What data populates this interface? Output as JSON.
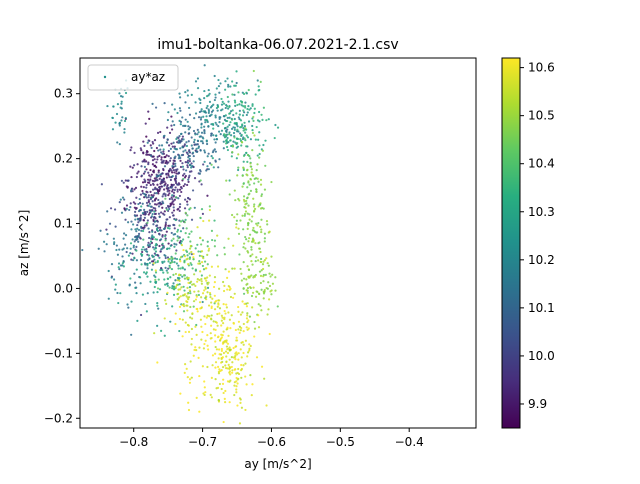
{
  "chart_data": {
    "type": "scatter",
    "title": "imu1-boltanka-06.07.2021-2.1.csv",
    "xlabel": "ay [m/s^2]",
    "ylabel": "az [m/s^2]",
    "xlim": [
      -0.878,
      -0.303
    ],
    "ylim": [
      -0.215,
      0.355
    ],
    "xticks": [
      -0.8,
      -0.7,
      -0.6,
      -0.5,
      -0.4
    ],
    "xtick_labels": [
      "−0.8",
      "−0.7",
      "−0.6",
      "−0.5",
      "−0.4"
    ],
    "yticks": [
      -0.2,
      -0.1,
      0.0,
      0.1,
      0.2,
      0.3
    ],
    "ytick_labels": [
      "−0.2",
      "−0.1",
      "0.0",
      "0.1",
      "0.2",
      "0.3"
    ],
    "legend": {
      "label": "ay*az",
      "placement": "upper-left"
    },
    "colorbar": {
      "colormap": "viridis",
      "range": [
        9.85,
        10.62
      ],
      "ticks": [
        9.9,
        10.0,
        10.1,
        10.2,
        10.3,
        10.4,
        10.5,
        10.6
      ],
      "tick_labels": [
        "9.9",
        "10.0",
        "10.1",
        "10.2",
        "10.3",
        "10.4",
        "10.5",
        "10.6"
      ]
    },
    "grid": false,
    "clusters": [
      {
        "x": -0.765,
        "y": 0.16,
        "sx": 0.022,
        "sy": 0.045,
        "c": 9.9,
        "n": 260
      },
      {
        "x": -0.775,
        "y": 0.12,
        "sx": 0.025,
        "sy": 0.04,
        "c": 10.0,
        "n": 180
      },
      {
        "x": -0.74,
        "y": 0.18,
        "sx": 0.02,
        "sy": 0.03,
        "c": 9.95,
        "n": 120
      },
      {
        "x": -0.79,
        "y": 0.07,
        "sx": 0.03,
        "sy": 0.045,
        "c": 10.15,
        "n": 160
      },
      {
        "x": -0.76,
        "y": 0.03,
        "sx": 0.025,
        "sy": 0.04,
        "c": 10.3,
        "n": 140
      },
      {
        "x": -0.72,
        "y": 0.05,
        "sx": 0.02,
        "sy": 0.04,
        "c": 10.4,
        "n": 110
      },
      {
        "x": -0.68,
        "y": 0.26,
        "sx": 0.03,
        "sy": 0.03,
        "c": 10.2,
        "n": 200
      },
      {
        "x": -0.72,
        "y": 0.22,
        "sx": 0.025,
        "sy": 0.03,
        "c": 10.12,
        "n": 140
      },
      {
        "x": -0.645,
        "y": 0.25,
        "sx": 0.02,
        "sy": 0.03,
        "c": 10.33,
        "n": 140
      },
      {
        "x": -0.63,
        "y": 0.12,
        "sx": 0.012,
        "sy": 0.06,
        "c": 10.47,
        "n": 160
      },
      {
        "x": -0.62,
        "y": 0.02,
        "sx": 0.012,
        "sy": 0.04,
        "c": 10.5,
        "n": 100
      },
      {
        "x": -0.68,
        "y": -0.07,
        "sx": 0.03,
        "sy": 0.05,
        "c": 10.6,
        "n": 220
      },
      {
        "x": -0.655,
        "y": -0.12,
        "sx": 0.015,
        "sy": 0.035,
        "c": 10.58,
        "n": 110
      },
      {
        "x": -0.71,
        "y": 0.01,
        "sx": 0.025,
        "sy": 0.04,
        "c": 10.55,
        "n": 120
      },
      {
        "x": -0.82,
        "y": 0.27,
        "sx": 0.006,
        "sy": 0.03,
        "c": 10.2,
        "n": 35
      }
    ]
  }
}
